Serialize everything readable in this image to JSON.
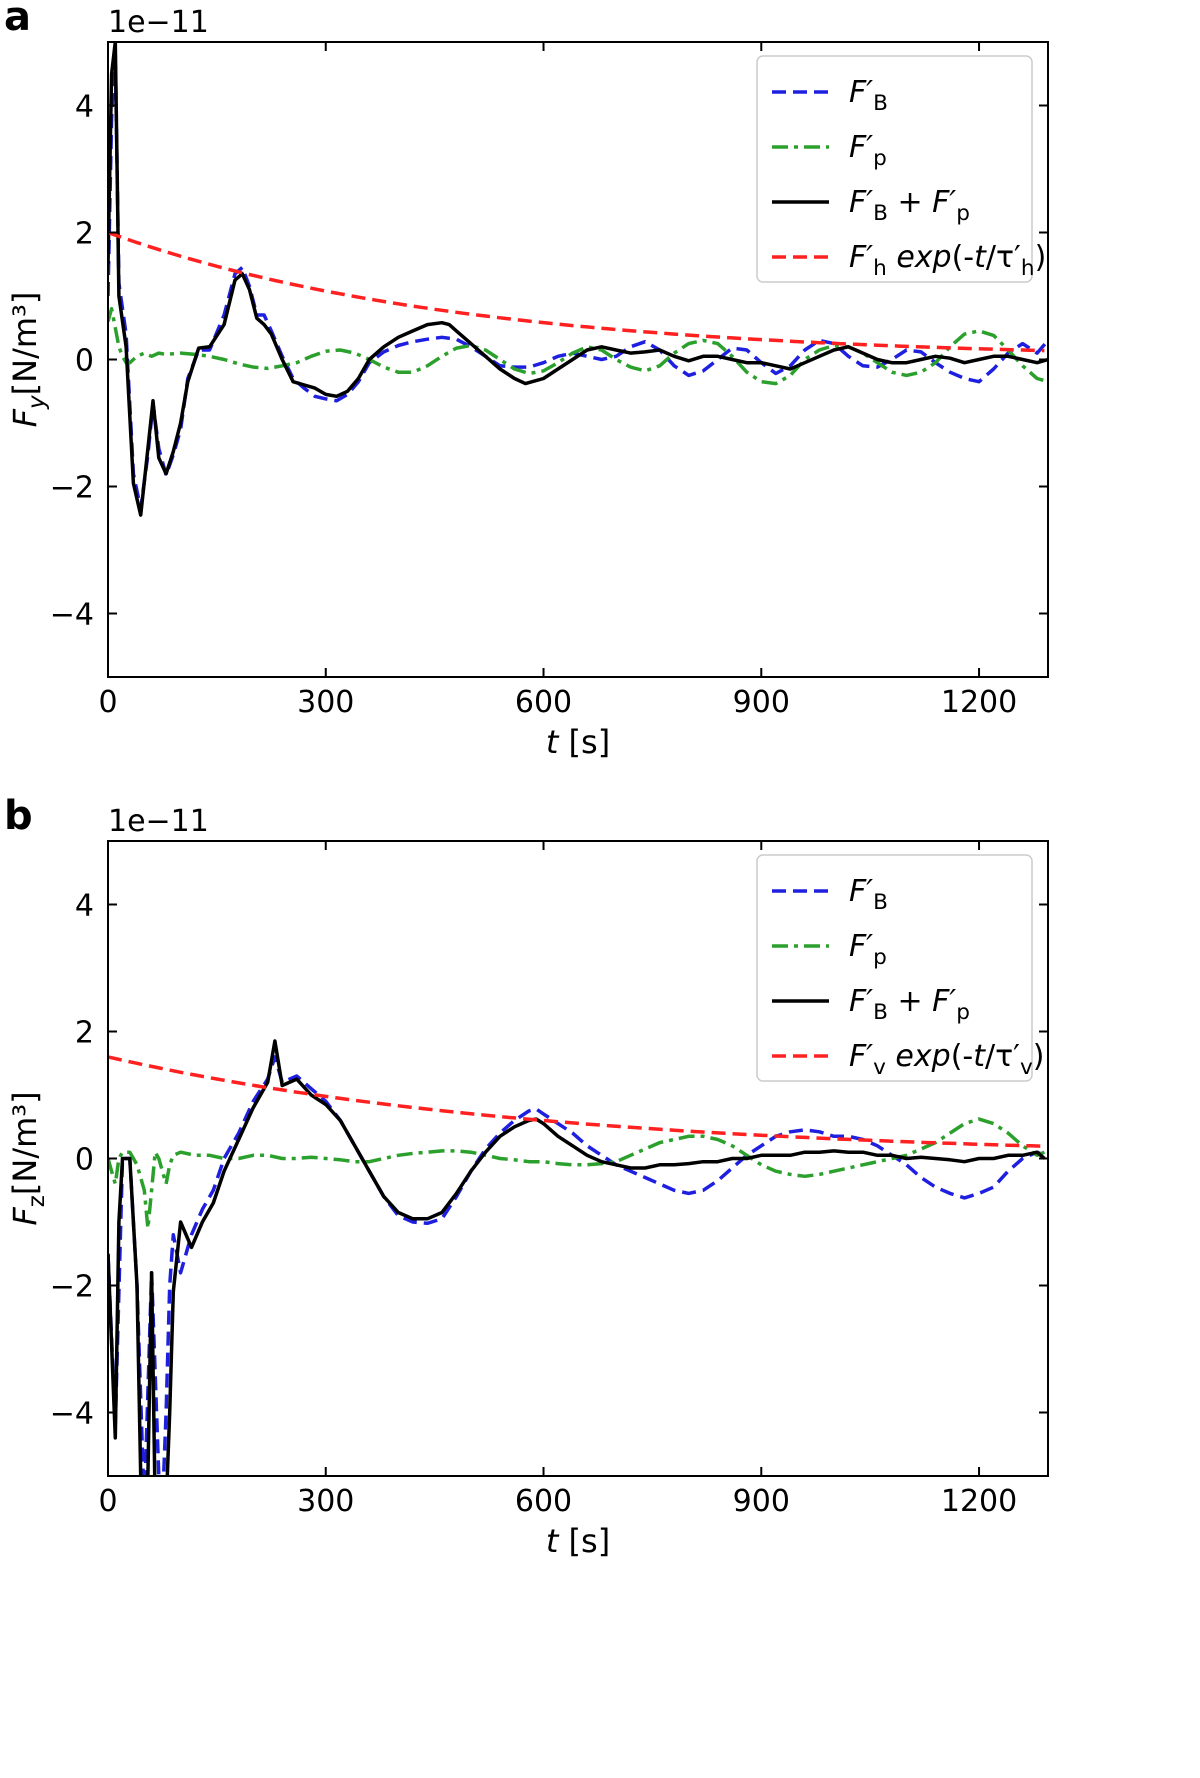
{
  "chart_data": [
    {
      "type": "line",
      "panel_label": "a",
      "scale_label": "1e−11",
      "xlabel": "t [s]",
      "ylabel": "F_y [N/m³]",
      "xlim": [
        0,
        1295
      ],
      "ylim": [
        -5,
        5
      ],
      "xticks": [
        0,
        300,
        600,
        900,
        1200
      ],
      "yticks": [
        -4,
        -2,
        0,
        2,
        4
      ],
      "tick_direction": "in",
      "grid": false,
      "legend_position": "top-right",
      "series": [
        {
          "name": "F′_B",
          "color": "#1f1fe0",
          "style": "dashed",
          "x": [
            0,
            5,
            10,
            15,
            25,
            35,
            45,
            55,
            62,
            70,
            80,
            90,
            100,
            110,
            125,
            140,
            160,
            175,
            185,
            195,
            205,
            215,
            225,
            240,
            255,
            270,
            285,
            300,
            315,
            330,
            345,
            360,
            380,
            400,
            420,
            440,
            460,
            480,
            500,
            520,
            540,
            560,
            580,
            600,
            620,
            640,
            660,
            680,
            700,
            720,
            740,
            760,
            780,
            800,
            820,
            840,
            860,
            880,
            900,
            920,
            940,
            960,
            980,
            1000,
            1020,
            1040,
            1060,
            1080,
            1100,
            1120,
            1140,
            1160,
            1180,
            1200,
            1220,
            1240,
            1260,
            1280,
            1295
          ],
          "values": [
            1.0,
            3.8,
            4.8,
            1.2,
            0.4,
            -1.8,
            -2.35,
            -1.5,
            -0.7,
            -1.4,
            -1.82,
            -1.5,
            -1.1,
            -0.3,
            0.15,
            0.15,
            0.7,
            1.35,
            1.45,
            1.15,
            0.7,
            0.7,
            0.45,
            0.05,
            -0.3,
            -0.45,
            -0.58,
            -0.62,
            -0.65,
            -0.55,
            -0.35,
            -0.05,
            0.12,
            0.22,
            0.28,
            0.32,
            0.35,
            0.32,
            0.2,
            0.05,
            -0.1,
            -0.12,
            -0.12,
            -0.05,
            0.05,
            0.1,
            0.05,
            0.0,
            0.05,
            0.2,
            0.28,
            0.15,
            -0.1,
            -0.25,
            -0.18,
            0.0,
            0.18,
            0.15,
            -0.05,
            -0.22,
            -0.1,
            0.15,
            0.3,
            0.25,
            0.05,
            -0.1,
            -0.12,
            0.0,
            0.15,
            0.12,
            -0.05,
            -0.2,
            -0.3,
            -0.35,
            -0.15,
            0.1,
            0.25,
            0.1,
            0.3
          ]
        },
        {
          "name": "F′_p",
          "color": "#2ca02c",
          "style": "dashdot",
          "x": [
            0,
            5,
            10,
            15,
            20,
            25,
            30,
            35,
            40,
            50,
            60,
            70,
            80,
            100,
            120,
            140,
            160,
            180,
            200,
            220,
            240,
            260,
            280,
            300,
            320,
            340,
            360,
            380,
            400,
            420,
            440,
            460,
            480,
            500,
            520,
            540,
            560,
            580,
            600,
            620,
            640,
            660,
            680,
            700,
            720,
            740,
            760,
            780,
            800,
            820,
            840,
            860,
            880,
            900,
            920,
            940,
            960,
            980,
            1000,
            1020,
            1040,
            1060,
            1080,
            1100,
            1120,
            1140,
            1160,
            1180,
            1200,
            1220,
            1240,
            1260,
            1280,
            1295
          ],
          "values": [
            0.6,
            0.8,
            0.5,
            0.2,
            0.05,
            -0.05,
            -0.05,
            0.0,
            0.05,
            0.1,
            0.05,
            0.1,
            0.08,
            0.1,
            0.08,
            0.05,
            0.0,
            -0.07,
            -0.12,
            -0.14,
            -0.1,
            -0.05,
            0.05,
            0.13,
            0.15,
            0.1,
            0.0,
            -0.12,
            -0.2,
            -0.2,
            -0.1,
            0.05,
            0.18,
            0.22,
            0.15,
            0.0,
            -0.15,
            -0.22,
            -0.18,
            -0.05,
            0.1,
            0.2,
            0.15,
            0.0,
            -0.12,
            -0.18,
            -0.1,
            0.1,
            0.25,
            0.3,
            0.25,
            0.05,
            -0.2,
            -0.35,
            -0.38,
            -0.25,
            0.0,
            0.15,
            0.22,
            0.2,
            0.1,
            -0.05,
            -0.2,
            -0.25,
            -0.2,
            -0.05,
            0.2,
            0.4,
            0.45,
            0.38,
            0.15,
            -0.1,
            -0.3,
            -0.35
          ]
        },
        {
          "name": "F′_B + F′_p",
          "color": "#000000",
          "style": "solid",
          "x": [
            0,
            5,
            10,
            15,
            25,
            35,
            45,
            55,
            62,
            70,
            80,
            90,
            100,
            110,
            125,
            140,
            160,
            175,
            185,
            195,
            205,
            215,
            225,
            240,
            255,
            270,
            285,
            300,
            315,
            330,
            345,
            360,
            380,
            400,
            420,
            440,
            460,
            470,
            480,
            500,
            520,
            540,
            560,
            575,
            600,
            620,
            640,
            660,
            680,
            700,
            720,
            740,
            760,
            780,
            800,
            820,
            840,
            860,
            880,
            900,
            920,
            940,
            960,
            980,
            1000,
            1020,
            1040,
            1060,
            1080,
            1100,
            1120,
            1140,
            1160,
            1180,
            1200,
            1220,
            1240,
            1260,
            1280,
            1295
          ],
          "values": [
            1.5,
            4.5,
            5.0,
            1.0,
            0.2,
            -1.95,
            -2.45,
            -1.4,
            -0.65,
            -1.55,
            -1.8,
            -1.45,
            -1.0,
            -0.35,
            0.18,
            0.2,
            0.55,
            1.25,
            1.35,
            1.1,
            0.65,
            0.55,
            0.4,
            0.0,
            -0.35,
            -0.4,
            -0.45,
            -0.55,
            -0.58,
            -0.5,
            -0.3,
            0.0,
            0.2,
            0.35,
            0.45,
            0.55,
            0.58,
            0.55,
            0.45,
            0.25,
            0.05,
            -0.15,
            -0.3,
            -0.38,
            -0.3,
            -0.15,
            0.0,
            0.15,
            0.2,
            0.15,
            0.1,
            0.12,
            0.15,
            0.05,
            -0.02,
            0.05,
            0.05,
            0.0,
            -0.05,
            -0.05,
            -0.1,
            -0.15,
            -0.05,
            0.05,
            0.15,
            0.2,
            0.1,
            0.0,
            -0.05,
            -0.05,
            0.0,
            0.05,
            0.02,
            -0.05,
            0.0,
            0.05,
            0.05,
            0.0,
            -0.05,
            0.0
          ]
        },
        {
          "name": "F′_h exp(-t/τ′_h)",
          "color": "#ff2020",
          "style": "dashed",
          "amplitude": 2.0,
          "tau": 485
        }
      ]
    },
    {
      "type": "line",
      "panel_label": "b",
      "scale_label": "1e−11",
      "xlabel": "t [s]",
      "ylabel": "F_z [N/m³]",
      "xlim": [
        0,
        1295
      ],
      "ylim": [
        -5,
        5
      ],
      "xticks": [
        0,
        300,
        600,
        900,
        1200
      ],
      "yticks": [
        -4,
        -2,
        0,
        2,
        4
      ],
      "tick_direction": "in",
      "grid": false,
      "legend_position": "top-right",
      "series": [
        {
          "name": "F′_B",
          "color": "#1f1fe0",
          "style": "dashed",
          "x": [
            0,
            10,
            20,
            30,
            40,
            50,
            60,
            70,
            75,
            80,
            85,
            90,
            100,
            115,
            130,
            145,
            160,
            180,
            200,
            220,
            230,
            240,
            260,
            280,
            300,
            320,
            340,
            360,
            380,
            400,
            420,
            440,
            460,
            480,
            500,
            520,
            540,
            560,
            580,
            590,
            600,
            620,
            640,
            660,
            680,
            700,
            720,
            740,
            760,
            780,
            800,
            820,
            840,
            860,
            880,
            900,
            920,
            940,
            960,
            980,
            1000,
            1020,
            1040,
            1060,
            1080,
            1100,
            1120,
            1140,
            1160,
            1180,
            1200,
            1220,
            1240,
            1260,
            1280,
            1290
          ],
          "values": [
            -1.5,
            -4.2,
            0.0,
            0.0,
            -2.0,
            -5.5,
            -1.8,
            -5.0,
            -5.5,
            -4.0,
            -2.0,
            -1.2,
            -1.8,
            -1.2,
            -0.8,
            -0.5,
            0.0,
            0.4,
            0.9,
            1.25,
            1.6,
            1.2,
            1.3,
            1.1,
            0.9,
            0.6,
            0.2,
            -0.2,
            -0.6,
            -0.9,
            -1.0,
            -1.02,
            -0.95,
            -0.6,
            -0.2,
            0.15,
            0.4,
            0.6,
            0.75,
            0.78,
            0.7,
            0.55,
            0.4,
            0.2,
            0.05,
            -0.1,
            -0.2,
            -0.3,
            -0.4,
            -0.5,
            -0.55,
            -0.5,
            -0.35,
            -0.15,
            0.05,
            0.2,
            0.35,
            0.42,
            0.45,
            0.42,
            0.35,
            0.35,
            0.3,
            0.2,
            0.05,
            -0.1,
            -0.3,
            -0.45,
            -0.55,
            -0.62,
            -0.55,
            -0.45,
            -0.2,
            0.0,
            0.1,
            0.05
          ]
        },
        {
          "name": "F′_p",
          "color": "#2ca02c",
          "style": "dashdot",
          "x": [
            0,
            5,
            10,
            15,
            20,
            25,
            30,
            40,
            50,
            55,
            60,
            65,
            70,
            75,
            80,
            85,
            90,
            100,
            120,
            140,
            160,
            180,
            200,
            220,
            240,
            260,
            280,
            300,
            320,
            340,
            360,
            380,
            400,
            420,
            440,
            460,
            480,
            500,
            520,
            540,
            560,
            580,
            600,
            620,
            640,
            660,
            680,
            700,
            720,
            740,
            760,
            780,
            800,
            820,
            840,
            860,
            880,
            900,
            920,
            940,
            960,
            980,
            1000,
            1020,
            1040,
            1060,
            1080,
            1100,
            1120,
            1140,
            1160,
            1180,
            1200,
            1220,
            1240,
            1260,
            1280,
            1290
          ],
          "values": [
            0.0,
            -0.2,
            -0.4,
            0.0,
            0.1,
            0.1,
            0.1,
            -0.1,
            -0.5,
            -1.1,
            -0.5,
            0.1,
            0.0,
            -0.2,
            -0.4,
            -0.1,
            0.05,
            0.1,
            0.05,
            0.05,
            0.0,
            0.0,
            0.05,
            0.05,
            0.0,
            0.0,
            0.02,
            0.0,
            -0.02,
            -0.05,
            -0.05,
            0.0,
            0.05,
            0.08,
            0.1,
            0.12,
            0.12,
            0.1,
            0.05,
            0.0,
            -0.02,
            -0.05,
            -0.05,
            -0.08,
            -0.1,
            -0.1,
            -0.08,
            -0.05,
            0.05,
            0.15,
            0.25,
            0.3,
            0.35,
            0.35,
            0.3,
            0.2,
            0.05,
            -0.1,
            -0.2,
            -0.25,
            -0.28,
            -0.25,
            -0.2,
            -0.15,
            -0.1,
            -0.05,
            0.0,
            0.05,
            0.15,
            0.25,
            0.4,
            0.55,
            0.62,
            0.55,
            0.4,
            0.2,
            0.05,
            0.1
          ]
        },
        {
          "name": "F′_B + F′_p",
          "color": "#000000",
          "style": "solid",
          "x": [
            0,
            10,
            15,
            20,
            30,
            40,
            45,
            50,
            55,
            60,
            65,
            70,
            75,
            80,
            85,
            90,
            100,
            115,
            130,
            145,
            160,
            180,
            200,
            220,
            230,
            240,
            260,
            280,
            300,
            320,
            340,
            360,
            380,
            400,
            420,
            440,
            460,
            480,
            500,
            520,
            540,
            560,
            580,
            590,
            600,
            620,
            640,
            660,
            680,
            700,
            720,
            740,
            760,
            780,
            800,
            820,
            840,
            860,
            880,
            900,
            920,
            940,
            960,
            980,
            1000,
            1020,
            1040,
            1060,
            1080,
            1100,
            1120,
            1140,
            1160,
            1180,
            1200,
            1220,
            1240,
            1260,
            1280,
            1290
          ],
          "values": [
            -1.5,
            -4.4,
            -1.0,
            0.0,
            0.0,
            -2.0,
            -5.0,
            -5.5,
            -5.0,
            -1.8,
            -5.5,
            -5.5,
            -5.5,
            -5.5,
            -4.0,
            -2.1,
            -1.0,
            -1.4,
            -1.0,
            -0.7,
            -0.2,
            0.3,
            0.8,
            1.2,
            1.85,
            1.15,
            1.25,
            1.0,
            0.85,
            0.6,
            0.2,
            -0.2,
            -0.6,
            -0.85,
            -0.95,
            -0.95,
            -0.85,
            -0.55,
            -0.2,
            0.1,
            0.35,
            0.5,
            0.6,
            0.62,
            0.55,
            0.35,
            0.2,
            0.05,
            -0.05,
            -0.1,
            -0.15,
            -0.15,
            -0.1,
            -0.1,
            -0.08,
            -0.05,
            -0.05,
            0.0,
            0.0,
            0.05,
            0.05,
            0.05,
            0.1,
            0.1,
            0.12,
            0.1,
            0.1,
            0.05,
            0.05,
            0.0,
            0.02,
            0.0,
            -0.02,
            -0.05,
            0.0,
            0.0,
            0.05,
            0.05,
            0.1,
            0.0
          ]
        },
        {
          "name": "F′_v exp(-t/τ′_v)",
          "color": "#ff2020",
          "style": "dashed",
          "amplitude": 1.6,
          "tau": 610
        }
      ]
    }
  ]
}
